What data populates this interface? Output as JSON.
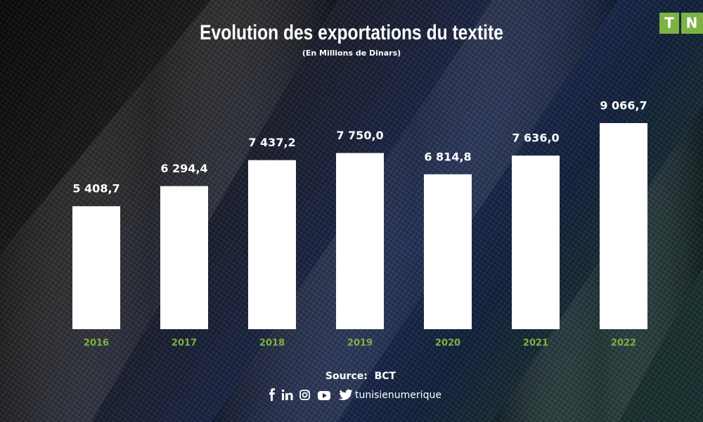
{
  "chart_data": {
    "type": "bar",
    "title": "Evolution des exportations du textite",
    "subtitle": "(En Millions de Dinars)",
    "categories": [
      "2016",
      "2017",
      "2018",
      "2019",
      "2020",
      "2021",
      "2022"
    ],
    "values": [
      5408.7,
      6294.4,
      7437.2,
      7750.0,
      6814.8,
      7636.0,
      9066.7
    ],
    "value_labels": [
      "5 408,7",
      "6 294,4",
      "7 437,2",
      "7 750,0",
      "6 814,8",
      "7 636,0",
      "9 066,7"
    ],
    "color": "#ffffff",
    "category_color": "#7cb342",
    "source": "Source:  BCT",
    "social_handle": "tunisienumerique",
    "brand": [
      "T",
      "N"
    ]
  }
}
